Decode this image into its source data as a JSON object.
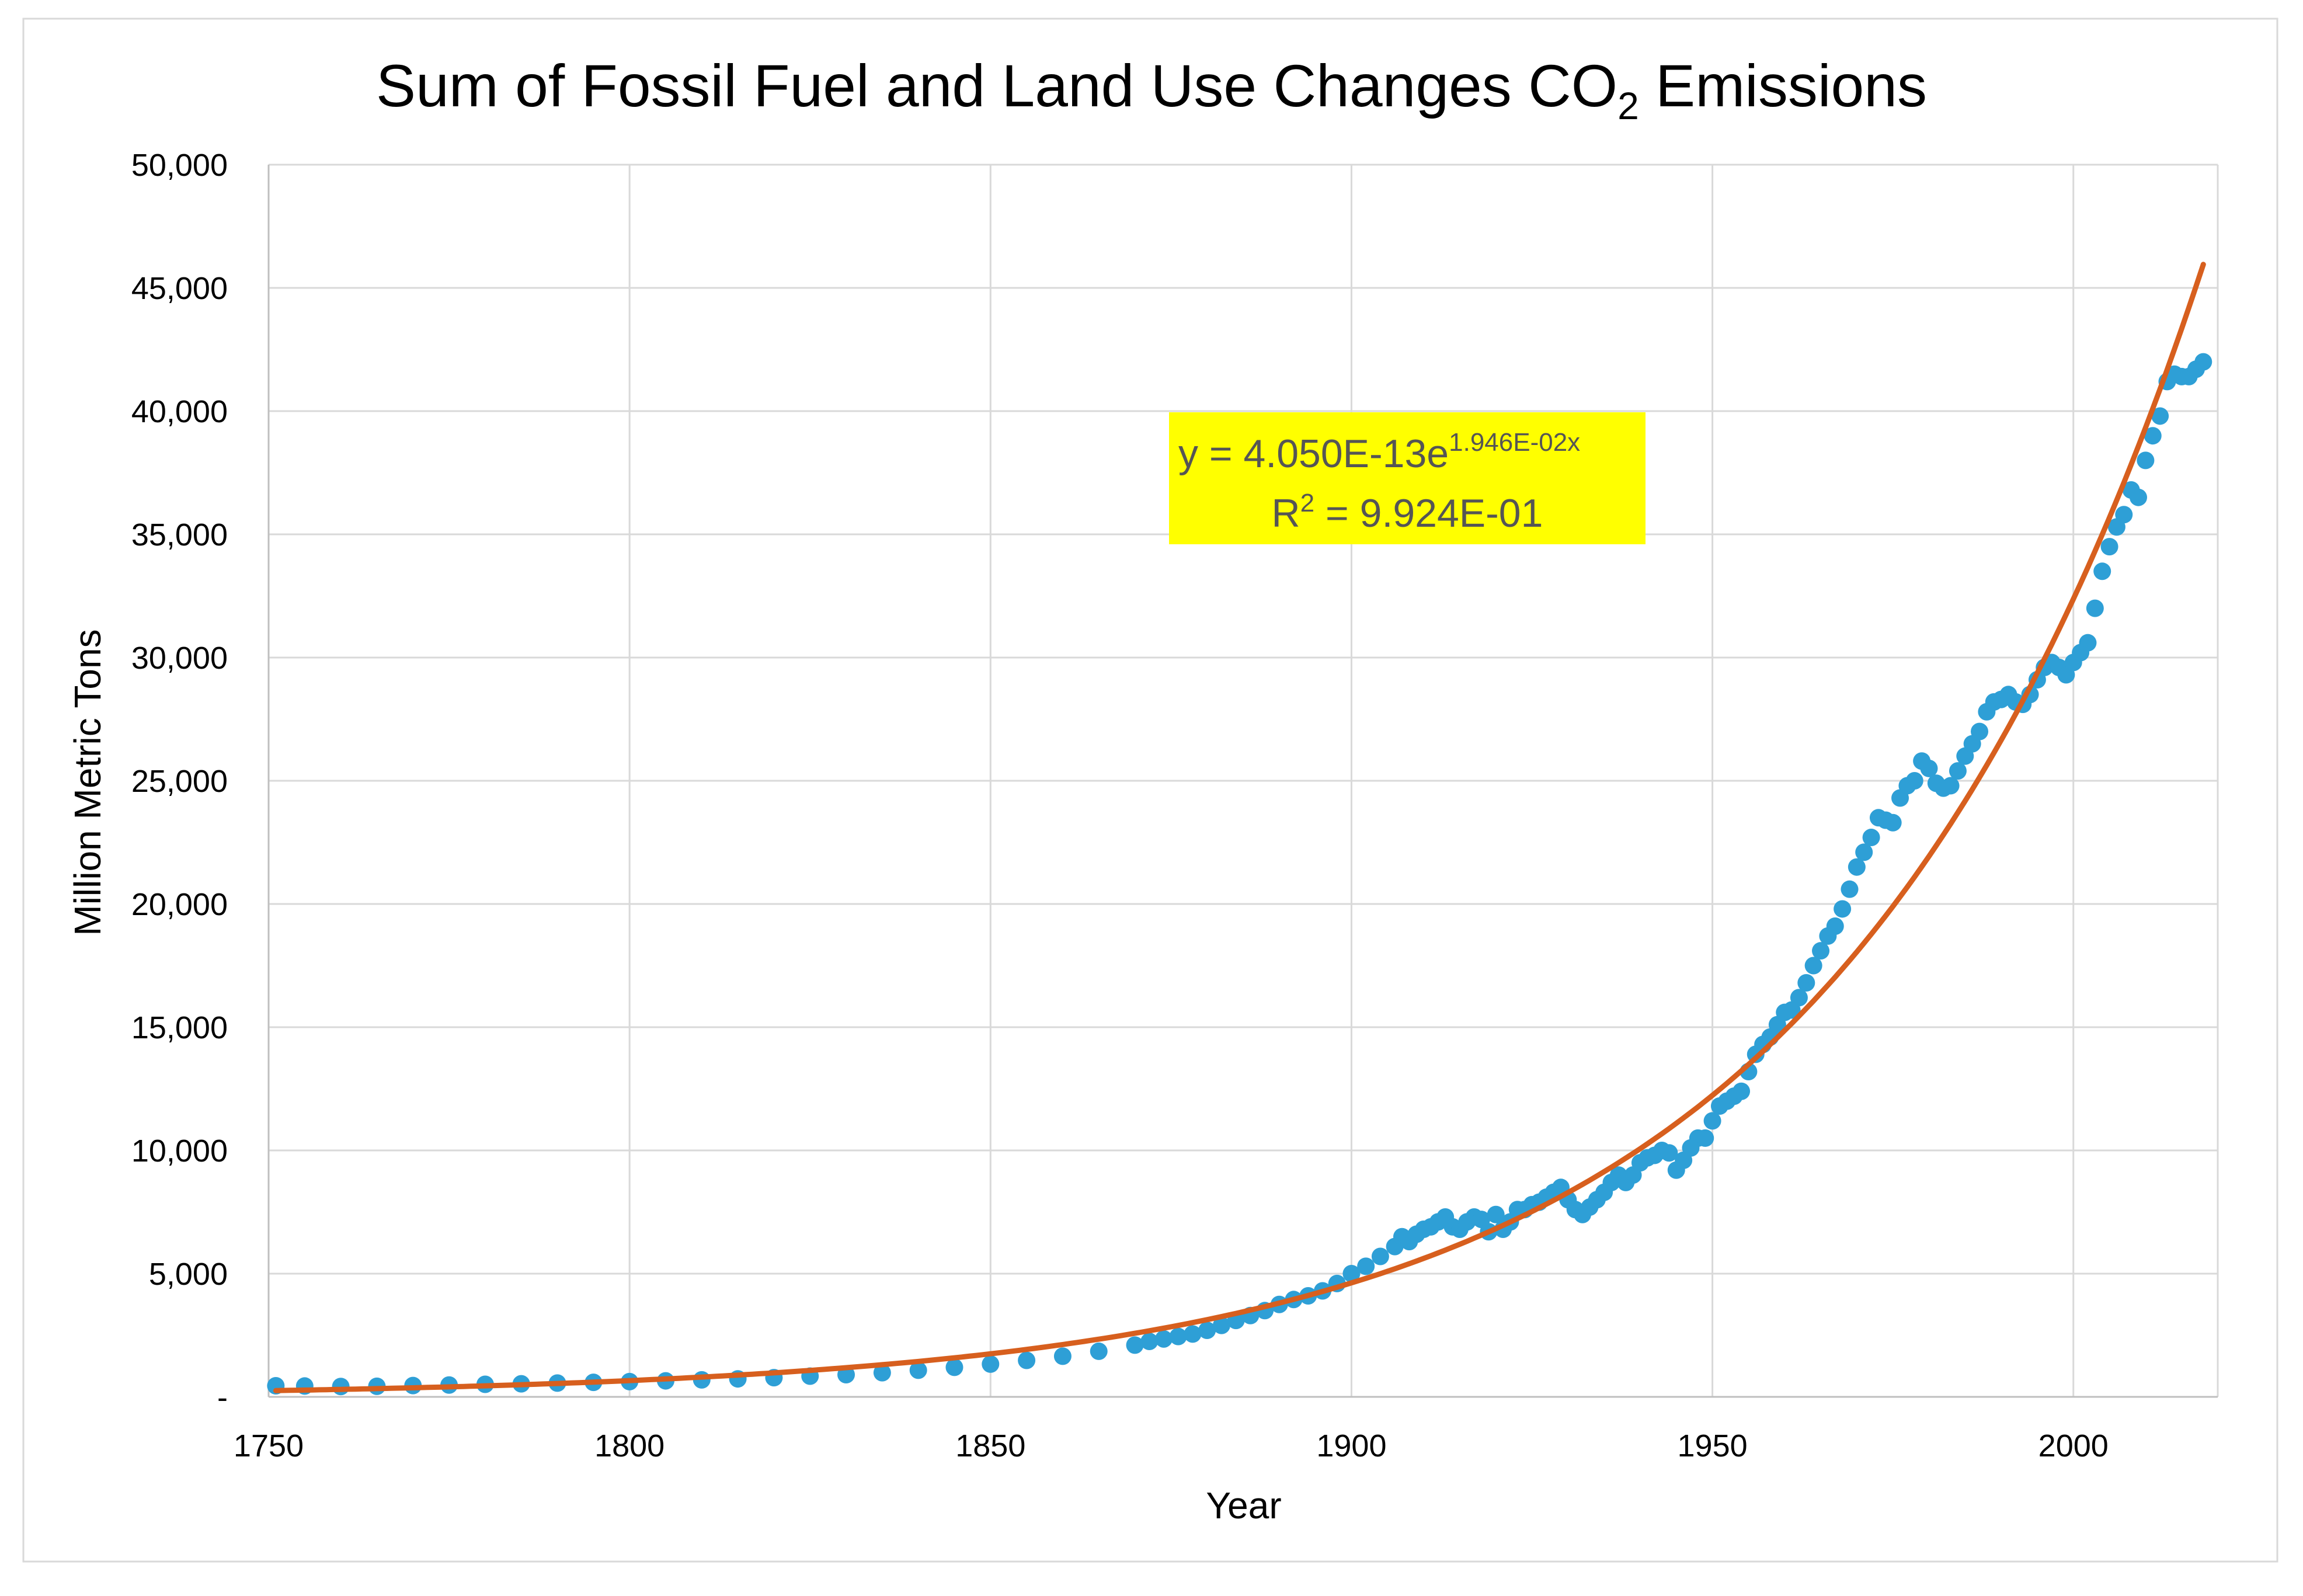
{
  "chart_data": {
    "type": "scatter",
    "title": {
      "prefix": "Sum of Fossil Fuel and Land Use Changes CO",
      "subscript": "2",
      "suffix": " Emissions"
    },
    "xlabel": "Year",
    "ylabel": "Million Metric Tons",
    "xlim": [
      1750,
      2020
    ],
    "ylim": [
      0,
      50000
    ],
    "x_ticks": [
      {
        "value": 1750,
        "label": "1750"
      },
      {
        "value": 1800,
        "label": "1800"
      },
      {
        "value": 1850,
        "label": "1850"
      },
      {
        "value": 1900,
        "label": "1900"
      },
      {
        "value": 1950,
        "label": "1950"
      },
      {
        "value": 2000,
        "label": "2000"
      }
    ],
    "y_ticks": [
      {
        "value": 0,
        "label": "-"
      },
      {
        "value": 5000,
        "label": "5,000"
      },
      {
        "value": 10000,
        "label": "10,000"
      },
      {
        "value": 15000,
        "label": "15,000"
      },
      {
        "value": 20000,
        "label": "20,000"
      },
      {
        "value": 25000,
        "label": "25,000"
      },
      {
        "value": 30000,
        "label": "30,000"
      },
      {
        "value": 35000,
        "label": "35,000"
      },
      {
        "value": 40000,
        "label": "40,000"
      },
      {
        "value": 45000,
        "label": "45,000"
      },
      {
        "value": 50000,
        "label": "50,000"
      }
    ],
    "grid": true,
    "series": [
      {
        "name": "Emissions",
        "color": "#2e9fd6",
        "points": [
          [
            1751,
            450
          ],
          [
            1755,
            440
          ],
          [
            1760,
            420
          ],
          [
            1765,
            430
          ],
          [
            1770,
            460
          ],
          [
            1775,
            480
          ],
          [
            1780,
            510
          ],
          [
            1785,
            530
          ],
          [
            1790,
            560
          ],
          [
            1795,
            590
          ],
          [
            1800,
            620
          ],
          [
            1805,
            650
          ],
          [
            1810,
            690
          ],
          [
            1815,
            730
          ],
          [
            1820,
            780
          ],
          [
            1825,
            840
          ],
          [
            1830,
            900
          ],
          [
            1835,
            980
          ],
          [
            1840,
            1080
          ],
          [
            1845,
            1200
          ],
          [
            1850,
            1330
          ],
          [
            1855,
            1480
          ],
          [
            1860,
            1650
          ],
          [
            1865,
            1850
          ],
          [
            1870,
            2100
          ],
          [
            1872,
            2250
          ],
          [
            1874,
            2350
          ],
          [
            1876,
            2450
          ],
          [
            1878,
            2550
          ],
          [
            1880,
            2700
          ],
          [
            1882,
            2900
          ],
          [
            1884,
            3100
          ],
          [
            1886,
            3300
          ],
          [
            1888,
            3500
          ],
          [
            1890,
            3750
          ],
          [
            1892,
            3950
          ],
          [
            1894,
            4100
          ],
          [
            1896,
            4300
          ],
          [
            1898,
            4600
          ],
          [
            1900,
            5000
          ],
          [
            1902,
            5300
          ],
          [
            1904,
            5700
          ],
          [
            1906,
            6100
          ],
          [
            1907,
            6500
          ],
          [
            1908,
            6300
          ],
          [
            1909,
            6600
          ],
          [
            1910,
            6800
          ],
          [
            1911,
            6900
          ],
          [
            1912,
            7100
          ],
          [
            1913,
            7300
          ],
          [
            1914,
            6900
          ],
          [
            1915,
            6800
          ],
          [
            1916,
            7100
          ],
          [
            1917,
            7300
          ],
          [
            1918,
            7200
          ],
          [
            1919,
            6700
          ],
          [
            1920,
            7400
          ],
          [
            1921,
            6800
          ],
          [
            1922,
            7100
          ],
          [
            1923,
            7600
          ],
          [
            1924,
            7600
          ],
          [
            1925,
            7800
          ],
          [
            1926,
            7900
          ],
          [
            1927,
            8100
          ],
          [
            1928,
            8300
          ],
          [
            1929,
            8500
          ],
          [
            1930,
            8000
          ],
          [
            1931,
            7600
          ],
          [
            1932,
            7400
          ],
          [
            1933,
            7700
          ],
          [
            1934,
            8000
          ],
          [
            1935,
            8300
          ],
          [
            1936,
            8700
          ],
          [
            1937,
            9000
          ],
          [
            1938,
            8700
          ],
          [
            1939,
            9000
          ],
          [
            1940,
            9500
          ],
          [
            1941,
            9700
          ],
          [
            1942,
            9800
          ],
          [
            1943,
            10000
          ],
          [
            1944,
            9900
          ],
          [
            1945,
            9200
          ],
          [
            1946,
            9600
          ],
          [
            1947,
            10100
          ],
          [
            1948,
            10500
          ],
          [
            1949,
            10500
          ],
          [
            1950,
            11200
          ],
          [
            1951,
            11800
          ],
          [
            1952,
            12000
          ],
          [
            1953,
            12200
          ],
          [
            1954,
            12400
          ],
          [
            1955,
            13200
          ],
          [
            1956,
            13900
          ],
          [
            1957,
            14300
          ],
          [
            1958,
            14600
          ],
          [
            1959,
            15100
          ],
          [
            1960,
            15600
          ],
          [
            1961,
            15700
          ],
          [
            1962,
            16200
          ],
          [
            1963,
            16800
          ],
          [
            1964,
            17500
          ],
          [
            1965,
            18100
          ],
          [
            1966,
            18700
          ],
          [
            1967,
            19100
          ],
          [
            1968,
            19800
          ],
          [
            1969,
            20600
          ],
          [
            1970,
            21500
          ],
          [
            1971,
            22100
          ],
          [
            1972,
            22700
          ],
          [
            1973,
            23500
          ],
          [
            1974,
            23400
          ],
          [
            1975,
            23300
          ],
          [
            1976,
            24300
          ],
          [
            1977,
            24800
          ],
          [
            1978,
            25000
          ],
          [
            1979,
            25800
          ],
          [
            1980,
            25500
          ],
          [
            1981,
            24900
          ],
          [
            1982,
            24700
          ],
          [
            1983,
            24800
          ],
          [
            1984,
            25400
          ],
          [
            1985,
            26000
          ],
          [
            1986,
            26500
          ],
          [
            1987,
            27000
          ],
          [
            1988,
            27800
          ],
          [
            1989,
            28200
          ],
          [
            1990,
            28300
          ],
          [
            1991,
            28500
          ],
          [
            1992,
            28200
          ],
          [
            1993,
            28100
          ],
          [
            1994,
            28500
          ],
          [
            1995,
            29100
          ],
          [
            1996,
            29600
          ],
          [
            1997,
            29800
          ],
          [
            1998,
            29600
          ],
          [
            1999,
            29300
          ],
          [
            2000,
            29800
          ],
          [
            2001,
            30200
          ],
          [
            2002,
            30600
          ],
          [
            2003,
            32000
          ],
          [
            2004,
            33500
          ],
          [
            2005,
            34500
          ],
          [
            2006,
            35300
          ],
          [
            2007,
            35800
          ],
          [
            2008,
            36800
          ],
          [
            2009,
            36500
          ],
          [
            2010,
            38000
          ],
          [
            2011,
            39000
          ],
          [
            2012,
            39800
          ],
          [
            2013,
            41200
          ],
          [
            2014,
            41500
          ],
          [
            2015,
            41400
          ],
          [
            2016,
            41400
          ],
          [
            2017,
            41700
          ],
          [
            2018,
            42000
          ]
        ]
      },
      {
        "name": "Exponential trendline",
        "type": "line",
        "color": "#d75f1e",
        "equation": {
          "a": 4.05e-13,
          "b": 0.01946
        },
        "x_range": [
          1751,
          2018
        ]
      }
    ],
    "annotation": {
      "line1_prefix": "y = 4.050E-13e",
      "line1_exponent": "1.946E-02x",
      "line2_prefix": "R",
      "line2_sup": "2",
      "line2_suffix": " = 9.924E-01",
      "background": "#ffff00"
    }
  }
}
